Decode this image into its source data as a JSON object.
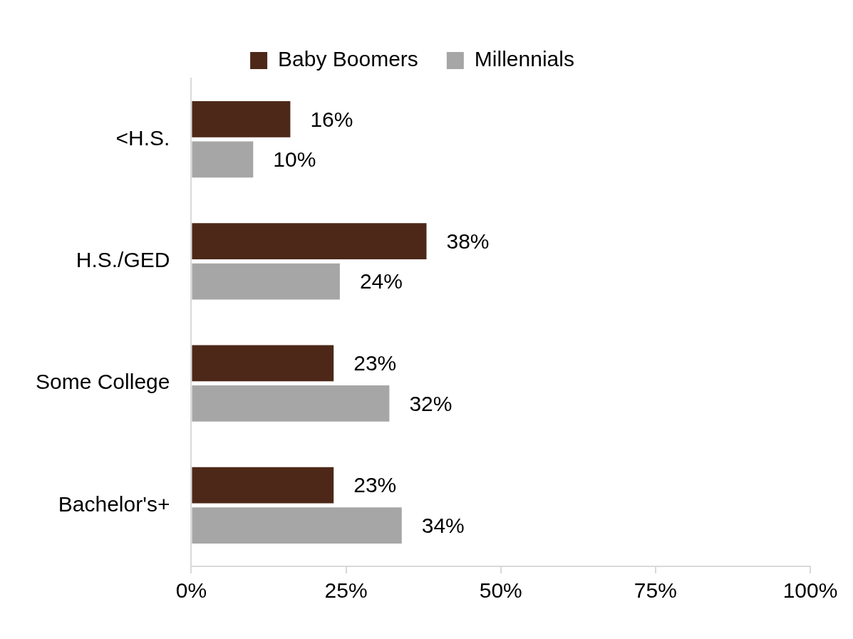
{
  "chart_data": {
    "type": "bar",
    "orientation": "horizontal",
    "categories": [
      "<H.S.",
      "H.S./GED",
      "Some College",
      "Bachelor's+"
    ],
    "series": [
      {
        "name": "Baby Boomers",
        "color": "#4d2819",
        "values": [
          16,
          38,
          23,
          23
        ],
        "value_labels": [
          "16%",
          "38%",
          "23%",
          "23%"
        ]
      },
      {
        "name": "Millennials",
        "color": "#a6a6a6",
        "values": [
          10,
          24,
          32,
          34
        ],
        "value_labels": [
          "10%",
          "24%",
          "32%",
          "34%"
        ]
      }
    ],
    "xlim": [
      0,
      100
    ],
    "xticks": [
      {
        "value": 0,
        "label": "0%"
      },
      {
        "value": 25,
        "label": "25%"
      },
      {
        "value": 50,
        "label": "50%"
      },
      {
        "value": 75,
        "label": "75%"
      },
      {
        "value": 100,
        "label": "100%"
      }
    ],
    "grid": false,
    "legend": "top",
    "data_labels": true
  }
}
